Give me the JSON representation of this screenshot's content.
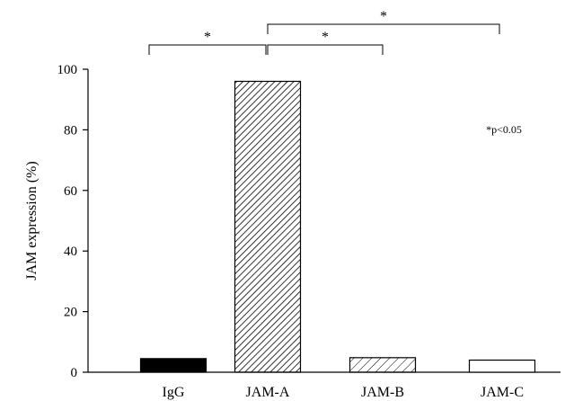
{
  "chart_data": {
    "type": "bar",
    "categories": [
      "IgG",
      "JAM-A",
      "JAM-B",
      "JAM-C"
    ],
    "values": [
      4.5,
      96,
      4.8,
      4.0
    ],
    "ylabel": "JAM expression (%)",
    "ylim": [
      0,
      100
    ],
    "yticks": [
      0,
      20,
      40,
      60,
      80,
      100
    ],
    "grid": false,
    "legend": "none",
    "bar_styles": [
      "solid",
      "hatched-dense",
      "hatched-light",
      "open"
    ],
    "colors": {
      "bar_stroke": "#000000",
      "solid_fill": "#000000",
      "background": "#ffffff"
    },
    "significance_note": "*p<0.05",
    "significance_brackets": [
      {
        "from": "IgG",
        "to": "JAM-A",
        "label": "*"
      },
      {
        "from": "JAM-A",
        "to": "JAM-B",
        "label": "*"
      },
      {
        "from": "JAM-A",
        "to": "JAM-C",
        "label": "*"
      }
    ]
  }
}
